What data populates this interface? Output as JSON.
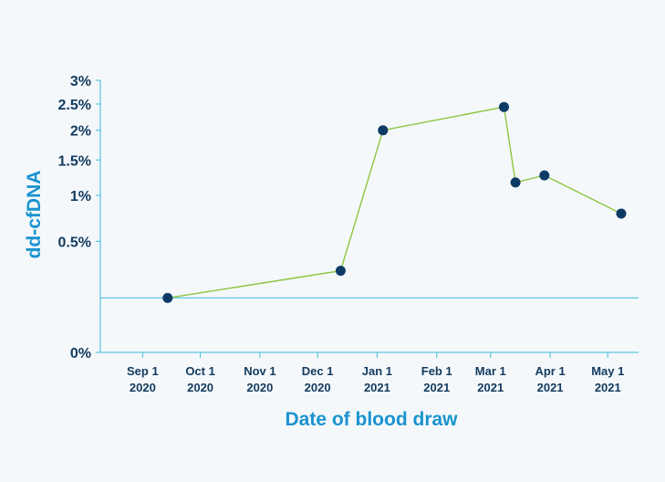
{
  "chart_data": {
    "type": "line",
    "xlabel": "Date of blood draw",
    "ylabel": "dd-cfDNA",
    "ylim": [
      0,
      3
    ],
    "y_scale": "sqrt",
    "y_ticks": [
      {
        "value": 0,
        "label": "0%"
      },
      {
        "value": 0.5,
        "label": "0.5%"
      },
      {
        "value": 1,
        "label": "1%"
      },
      {
        "value": 1.5,
        "label": "1.5%"
      },
      {
        "value": 2,
        "label": "2%"
      },
      {
        "value": 2.5,
        "label": "2.5%"
      },
      {
        "value": 3,
        "label": "3%"
      }
    ],
    "xlim": [
      "2020-08-10",
      "2021-05-17"
    ],
    "x_ticks": [
      {
        "date": "2020-09-01",
        "line1": "Sep 1",
        "line2": "2020"
      },
      {
        "date": "2020-10-01",
        "line1": "Oct 1",
        "line2": "2020"
      },
      {
        "date": "2020-11-01",
        "line1": "Nov 1",
        "line2": "2020"
      },
      {
        "date": "2020-12-01",
        "line1": "Dec 1",
        "line2": "2020"
      },
      {
        "date": "2021-01-01",
        "line1": "Jan 1",
        "line2": "2021"
      },
      {
        "date": "2021-02-01",
        "line1": "Feb 1",
        "line2": "2021"
      },
      {
        "date": "2021-03-01",
        "line1": "Mar 1",
        "line2": "2021"
      },
      {
        "date": "2021-04-01",
        "line1": "Apr 1",
        "line2": "2021"
      },
      {
        "date": "2021-05-01",
        "line1": "May 1",
        "line2": "2021"
      }
    ],
    "threshold": 0.12,
    "series": [
      {
        "points": [
          {
            "x": "2020-09-14",
            "y": 0.12
          },
          {
            "x": "2020-12-13",
            "y": 0.27
          },
          {
            "x": "2021-01-04",
            "y": 2.0
          },
          {
            "x": "2021-03-08",
            "y": 2.44
          },
          {
            "x": "2021-03-14",
            "y": 1.17
          },
          {
            "x": "2021-03-29",
            "y": 1.27
          },
          {
            "x": "2021-05-08",
            "y": 0.78
          }
        ]
      }
    ],
    "grid": false,
    "colors": {
      "line": "#8cc63f",
      "marker": "#0d3b66",
      "axis": "#5cc4e0",
      "label": "#123a5e",
      "title": "#1a93cf"
    }
  }
}
